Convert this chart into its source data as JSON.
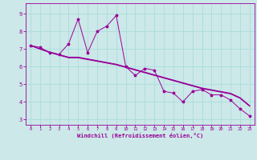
{
  "xlabel": "Windchill (Refroidissement éolien,°C)",
  "bg_color": "#cce8e8",
  "line_color": "#990099",
  "grid_color": "#aadddd",
  "x_ticks": [
    0,
    1,
    2,
    3,
    4,
    5,
    6,
    7,
    8,
    9,
    10,
    11,
    12,
    13,
    14,
    15,
    16,
    17,
    18,
    19,
    20,
    21,
    22,
    23
  ],
  "y_ticks": [
    3,
    4,
    5,
    6,
    7,
    8,
    9
  ],
  "ylim": [
    2.7,
    9.6
  ],
  "xlim": [
    -0.5,
    23.5
  ],
  "line_zigzag": [
    7.2,
    7.1,
    6.8,
    6.7,
    7.3,
    8.7,
    6.8,
    8.0,
    8.3,
    8.9,
    6.0,
    5.5,
    5.9,
    5.8,
    4.6,
    4.5,
    4.0,
    4.6,
    4.7,
    4.4,
    4.4,
    4.1,
    3.6,
    3.2
  ],
  "line_reg1": [
    7.2,
    7.0,
    6.8,
    6.65,
    6.5,
    6.5,
    6.4,
    6.3,
    6.2,
    6.1,
    5.95,
    5.8,
    5.65,
    5.5,
    5.35,
    5.2,
    5.05,
    4.9,
    4.75,
    4.65,
    4.55,
    4.45,
    4.2,
    3.75
  ],
  "line_reg2": [
    7.2,
    7.0,
    6.82,
    6.67,
    6.52,
    6.52,
    6.42,
    6.32,
    6.22,
    6.12,
    5.97,
    5.82,
    5.67,
    5.52,
    5.37,
    5.22,
    5.07,
    4.92,
    4.77,
    4.67,
    4.57,
    4.47,
    4.22,
    3.77
  ],
  "line_reg3": [
    7.2,
    7.0,
    6.84,
    6.69,
    6.54,
    6.54,
    6.44,
    6.34,
    6.24,
    6.14,
    5.99,
    5.84,
    5.69,
    5.54,
    5.39,
    5.24,
    5.09,
    4.94,
    4.79,
    4.69,
    4.59,
    4.49,
    4.24,
    3.79
  ]
}
